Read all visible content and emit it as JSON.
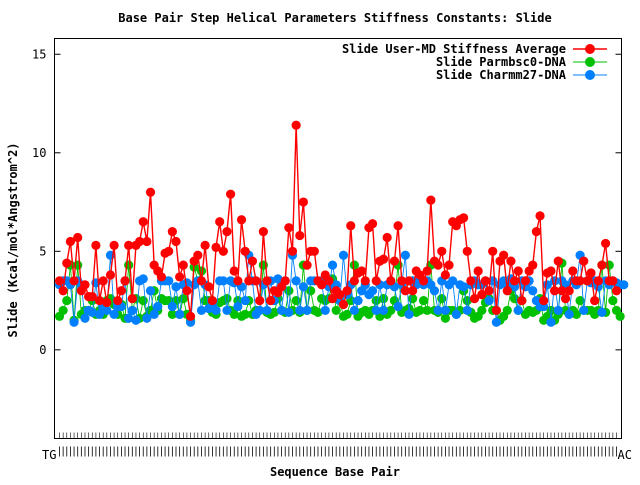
{
  "chart_data": {
    "type": "line",
    "title": "Base Pair Step Helical Parameters Stiffness Constants: Slide",
    "xlabel": "Sequence Base Pair",
    "ylabel": "Slide (Kcal/mol*Angstrom^2)",
    "ylim": [
      -4.5,
      15.8
    ],
    "yticks": [
      0,
      5,
      10,
      15
    ],
    "xticks_left_label": "TG",
    "xticks_right_label": "AC",
    "grid": false,
    "legend_position": "top-right",
    "series": [
      {
        "name": "Slide User-MD Stiffness Average",
        "color": "#ff0000",
        "values": [
          3.5,
          3.0,
          4.4,
          5.5,
          3.5,
          5.7,
          3.0,
          3.3,
          2.7,
          2.7,
          5.3,
          2.5,
          3.5,
          2.4,
          3.8,
          5.3,
          2.5,
          3.0,
          3.5,
          5.3,
          2.6,
          5.3,
          5.5,
          6.5,
          5.5,
          8.0,
          4.3,
          4.0,
          3.7,
          4.9,
          5.0,
          6.0,
          5.5,
          3.7,
          4.3,
          3.0,
          1.7,
          4.5,
          4.8,
          3.5,
          5.3,
          3.2,
          2.5,
          5.2,
          6.5,
          5.0,
          6.0,
          7.9,
          4.0,
          3.5,
          6.6,
          5.0,
          3.5,
          4.5,
          3.5,
          2.5,
          6.0,
          3.5,
          2.5,
          3.0,
          2.9,
          3.2,
          3.5,
          6.2,
          5.0,
          11.4,
          5.8,
          7.5,
          4.3,
          5.0,
          5.0,
          3.5,
          3.3,
          3.8,
          3.5,
          2.6,
          3.0,
          2.8,
          2.3,
          3.0,
          6.3,
          3.5,
          3.9,
          4.0,
          3.5,
          6.2,
          6.4,
          3.5,
          4.5,
          4.6,
          5.7,
          3.5,
          4.5,
          6.3,
          3.5,
          3.0,
          3.5,
          3.0,
          4.0,
          3.8,
          3.5,
          4.0,
          7.6,
          4.5,
          4.3,
          5.0,
          3.8,
          4.3,
          6.5,
          6.3,
          6.6,
          6.7,
          5.0,
          3.5,
          2.6,
          4.0,
          2.8,
          3.5,
          3.0,
          5.0,
          2.0,
          4.5,
          4.8,
          3.0,
          4.5,
          3.5,
          4.0,
          2.5,
          3.5,
          4.0,
          4.3,
          6.0,
          6.8,
          2.5,
          3.9,
          4.0,
          3.0,
          4.5,
          3.0,
          2.6,
          3.0,
          4.0,
          3.5,
          3.5,
          4.5,
          3.5,
          3.9,
          2.5,
          3.5,
          4.3,
          5.4,
          3.5,
          3.5,
          3.0
        ]
      },
      {
        "name": "Slide Parmbsc0-DNA",
        "color": "#00c000",
        "values": [
          1.7,
          2.0,
          2.5,
          4.3,
          1.5,
          4.3,
          1.8,
          2.0,
          2.0,
          2.5,
          1.8,
          2.0,
          1.8,
          2.5,
          2.6,
          2.3,
          1.8,
          2.3,
          1.6,
          4.3,
          2.0,
          2.6,
          1.6,
          2.5,
          1.7,
          2.0,
          3.0,
          2.0,
          2.6,
          2.5,
          2.5,
          1.8,
          2.5,
          1.8,
          2.6,
          1.8,
          1.5,
          4.2,
          3.5,
          4.0,
          2.5,
          2.5,
          1.9,
          1.8,
          2.4,
          2.5,
          2.6,
          2.0,
          1.8,
          2.5,
          1.7,
          1.8,
          2.5,
          1.8,
          2.0,
          2.0,
          4.3,
          1.9,
          1.8,
          1.9,
          2.6,
          2.0,
          1.9,
          3.0,
          2.0,
          2.5,
          1.9,
          4.3,
          2.0,
          3.0,
          2.0,
          1.9,
          2.6,
          2.5,
          2.6,
          3.6,
          2.0,
          2.5,
          1.7,
          1.8,
          2.5,
          4.3,
          1.7,
          1.9,
          2.0,
          1.8,
          2.0,
          2.5,
          1.7,
          2.6,
          1.8,
          2.0,
          2.5,
          4.3,
          1.9,
          2.0,
          2.1,
          2.6,
          1.9,
          2.0,
          2.5,
          2.0,
          4.3,
          2.0,
          1.9,
          2.6,
          1.6,
          2.0,
          2.0,
          1.8,
          2.0,
          3.0,
          2.5,
          1.9,
          1.6,
          1.7,
          2.0,
          2.4,
          2.6,
          2.0,
          2.0,
          1.5,
          1.7,
          2.0,
          3.0,
          2.6,
          2.0,
          2.5,
          1.8,
          2.0,
          1.9,
          2.0,
          2.6,
          1.5,
          1.7,
          2.0,
          1.5,
          1.8,
          4.4,
          2.0,
          1.8,
          2.0,
          1.8,
          2.5,
          2.0,
          2.0,
          2.0,
          1.8,
          2.0,
          4.3,
          1.9,
          4.3,
          2.5,
          2.0,
          1.7
        ]
      },
      {
        "name": "Slide Charmm27-DNA",
        "color": "#0080ff",
        "values": [
          3.3,
          3.5,
          3.5,
          3.3,
          1.4,
          3.5,
          3.3,
          1.6,
          2.0,
          1.9,
          3.4,
          1.8,
          2.2,
          2.0,
          4.8,
          1.8,
          2.2,
          2.2,
          3.5,
          1.6,
          2.0,
          1.5,
          3.5,
          3.6,
          1.6,
          3.0,
          1.8,
          2.2,
          3.5,
          3.5,
          3.5,
          2.2,
          3.2,
          1.8,
          3.3,
          3.4,
          1.4,
          3.3,
          3.5,
          2.0,
          3.3,
          2.1,
          2.2,
          2.0,
          3.5,
          3.5,
          2.0,
          3.5,
          3.4,
          2.2,
          3.2,
          2.5,
          4.8,
          3.5,
          1.8,
          2.0,
          3.3,
          2.0,
          3.5,
          2.5,
          3.6,
          2.0,
          3.5,
          1.9,
          4.8,
          3.5,
          2.0,
          3.2,
          2.0,
          3.5,
          3.5,
          3.5,
          3.5,
          2.0,
          3.2,
          4.3,
          3.3,
          2.5,
          4.8,
          2.8,
          3.3,
          2.0,
          2.5,
          3.0,
          3.3,
          2.8,
          3.0,
          2.0,
          3.3,
          2.0,
          3.3,
          3.5,
          3.2,
          2.2,
          3.3,
          4.8,
          1.8,
          3.5,
          3.3,
          3.5,
          3.3,
          3.5,
          3.3,
          3.0,
          2.0,
          3.5,
          2.0,
          3.3,
          3.5,
          1.8,
          3.3,
          3.2,
          2.0,
          3.3,
          3.5,
          3.3,
          3.3,
          3.5,
          2.5,
          3.5,
          1.4,
          3.3,
          3.5,
          3.3,
          3.6,
          3.2,
          2.0,
          3.5,
          3.2,
          3.5,
          3.0,
          2.5,
          2.2,
          2.2,
          3.3,
          1.4,
          3.5,
          2.0,
          3.5,
          3.3,
          1.8,
          3.5,
          3.3,
          4.8,
          2.0,
          3.5,
          3.4,
          3.5,
          3.2,
          1.9,
          3.5,
          3.3,
          3.5,
          3.4,
          3.3,
          3.3
        ]
      }
    ]
  }
}
